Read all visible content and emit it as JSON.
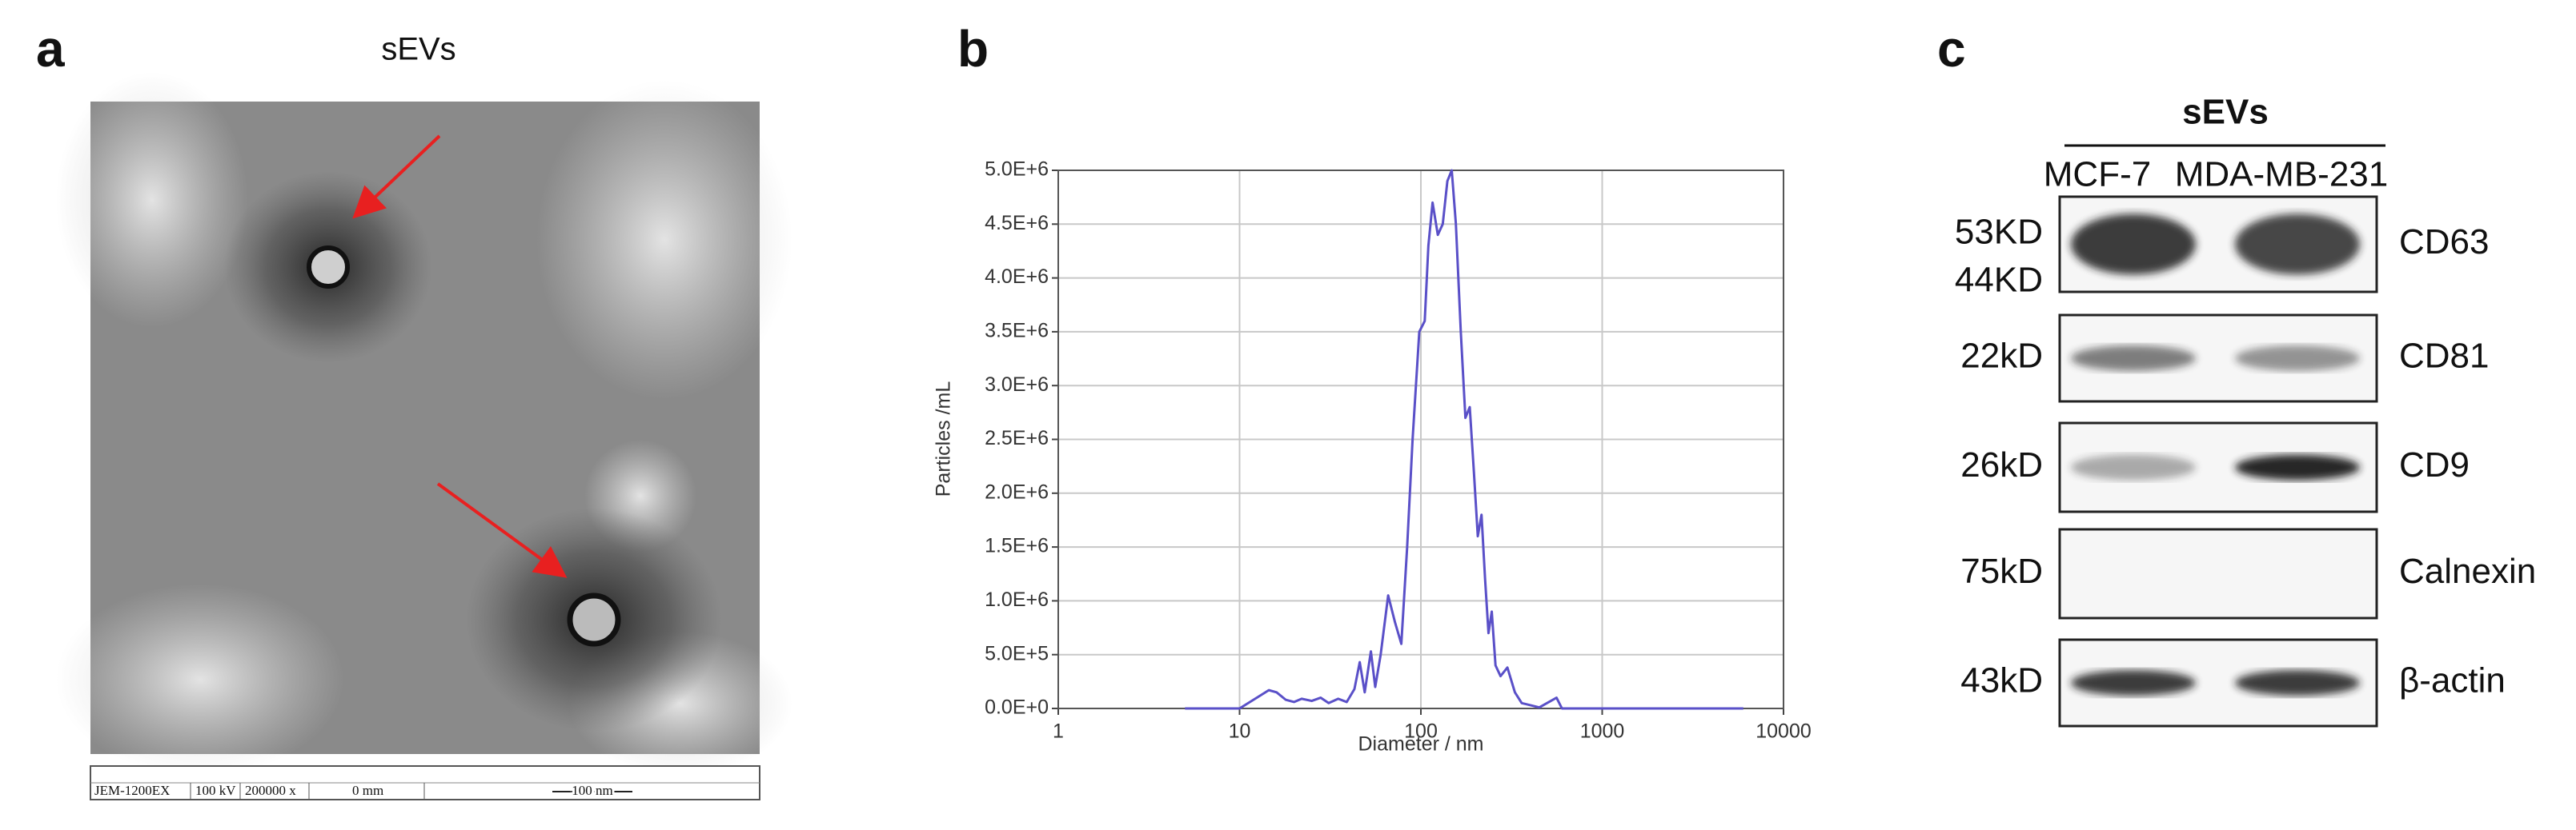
{
  "panel_a": {
    "label": "a",
    "title": "sEVs",
    "caption": [
      "JEM-1200EX",
      "100 kV",
      "200000 x",
      "0 mm",
      "100 nm"
    ]
  },
  "chart_data": {
    "type": "line",
    "label": "b",
    "xlabel": "Diameter / nm",
    "ylabel": "Particles /mL",
    "log_x": true,
    "grid": true,
    "color": "#5a50c8",
    "xlim": [
      1,
      10000
    ],
    "xticks": [
      1,
      10,
      100,
      1000,
      10000
    ],
    "ylim": [
      0,
      5000000
    ],
    "yticks": [
      {
        "value": 0,
        "label": "0.0E+0"
      },
      {
        "value": 500000,
        "label": "5.0E+5"
      },
      {
        "value": 1000000,
        "label": "1.0E+6"
      },
      {
        "value": 1500000,
        "label": "1.5E+6"
      },
      {
        "value": 2000000,
        "label": "2.0E+6"
      },
      {
        "value": 2500000,
        "label": "2.5E+6"
      },
      {
        "value": 3000000,
        "label": "3.0E+6"
      },
      {
        "value": 3500000,
        "label": "3.5E+6"
      },
      {
        "value": 4000000,
        "label": "4.0E+6"
      },
      {
        "value": 4500000,
        "label": "4.5E+6"
      },
      {
        "value": 5000000,
        "label": "5.0E+6"
      }
    ],
    "x": [
      5,
      10,
      13,
      14.5,
      16,
      18,
      20,
      22,
      25,
      28,
      31,
      35,
      39,
      43,
      46,
      49,
      53,
      56,
      60,
      66,
      72,
      78,
      84,
      90,
      98,
      105,
      110,
      116,
      124,
      132,
      140,
      148,
      156,
      166,
      176,
      186,
      196,
      206,
      216,
      226,
      236,
      246,
      258,
      275,
      300,
      330,
      360,
      450,
      560,
      600,
      1000,
      6000
    ],
    "values": [
      0,
      0,
      120000,
      170000,
      150000,
      80000,
      60000,
      90000,
      70000,
      100000,
      50000,
      90000,
      60000,
      180000,
      430000,
      150000,
      530000,
      200000,
      500000,
      1050000,
      800000,
      600000,
      1500000,
      2500000,
      3500000,
      3600000,
      4300000,
      4700000,
      4400000,
      4500000,
      4900000,
      5000000,
      4500000,
      3500000,
      2700000,
      2800000,
      2200000,
      1600000,
      1800000,
      1200000,
      700000,
      900000,
      400000,
      300000,
      380000,
      150000,
      50000,
      10000,
      100000,
      0,
      0,
      0
    ]
  },
  "panel_c": {
    "label": "c",
    "title": "sEVs",
    "columns": [
      "MCF-7",
      "MDA-MB-231"
    ],
    "rows": [
      {
        "markers": [
          "53KD",
          "44KD"
        ],
        "protein": "CD63"
      },
      {
        "markers": [
          "22kD"
        ],
        "protein": "CD81"
      },
      {
        "markers": [
          "26kD"
        ],
        "protein": "CD9"
      },
      {
        "markers": [
          "75kD"
        ],
        "protein": "Calnexin"
      },
      {
        "markers": [
          "43kD"
        ],
        "protein": "β-actin"
      }
    ]
  }
}
